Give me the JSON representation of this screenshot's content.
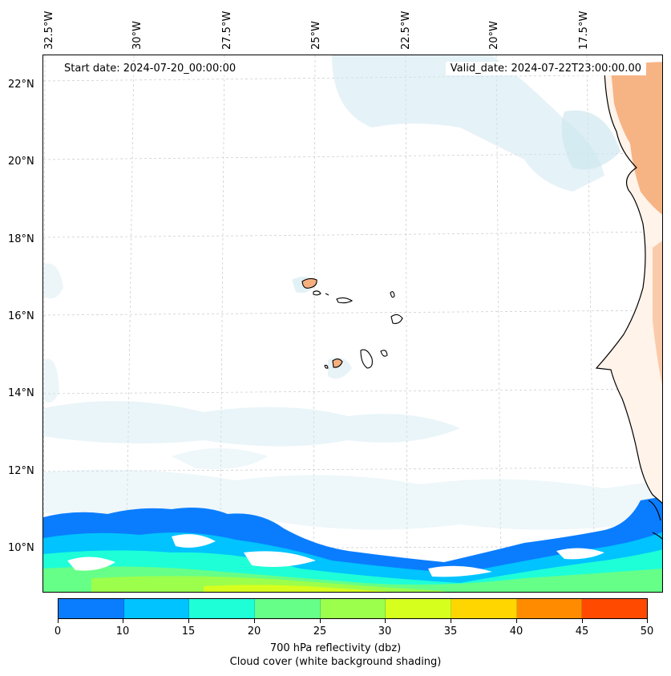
{
  "map": {
    "start_date_label": "Start date: 2024-07-20_00:00:00",
    "valid_date_label": "Valid_date: 2024-07-22T23:00:00.00",
    "longitude_labels": [
      "32.5°W",
      "30°W",
      "27.5°W",
      "25°W",
      "22.5°W",
      "20°W",
      "17.5°W"
    ],
    "latitude_labels": [
      "22°N",
      "20°N",
      "18°N",
      "16°N",
      "14°N",
      "12°N",
      "10°N"
    ],
    "land_color": "#f6b07f",
    "cloud_color": "#cfe8f0"
  },
  "colorbar": {
    "ticks": [
      "0",
      "10",
      "15",
      "20",
      "25",
      "30",
      "35",
      "40",
      "45",
      "50"
    ],
    "colors": [
      "#0a7dff",
      "#00c3ff",
      "#1effd8",
      "#66ff88",
      "#9cff4c",
      "#d7ff1e",
      "#ffd600",
      "#ff8c00",
      "#ff4a00"
    ],
    "label": "700 hPa reflectivity (dbz)",
    "sublabel": "Cloud cover (white background shading)"
  }
}
